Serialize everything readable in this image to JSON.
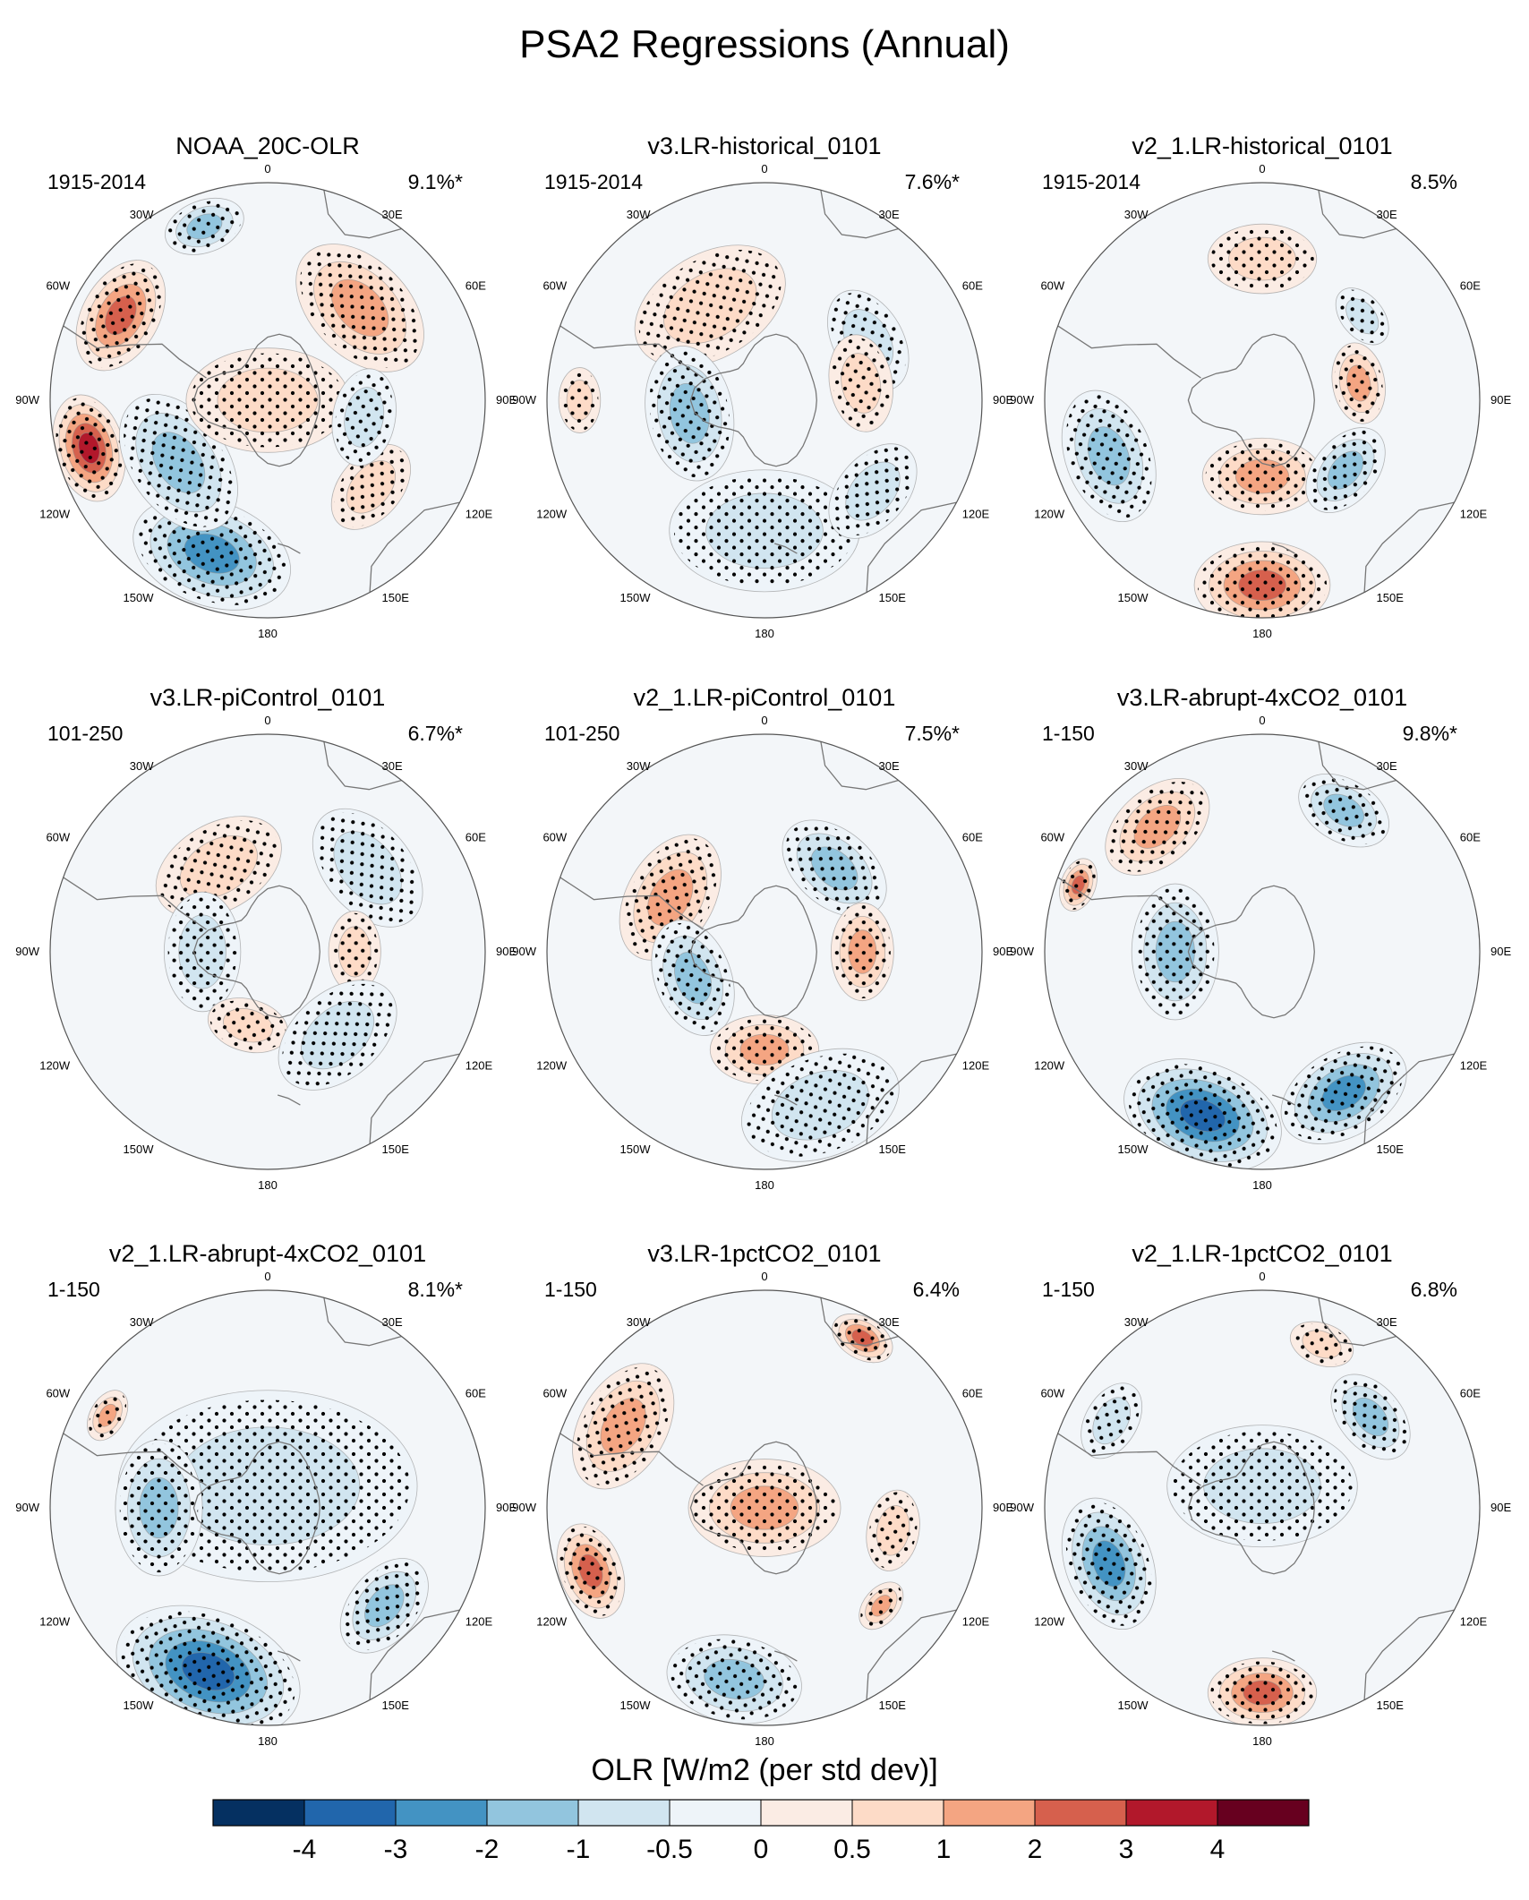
{
  "chart_data": {
    "type": "heatmap",
    "title": "PSA2 Regressions (Annual)",
    "projection": "south-polar-stereographic",
    "lon_labels": [
      "0",
      "30E",
      "60E",
      "90E",
      "120E",
      "150E",
      "180",
      "150W",
      "120W",
      "90W",
      "60W",
      "30W"
    ],
    "colorbar": {
      "label": "OLR [W/m2 (per std dev)]",
      "levels": [
        "-4",
        "-3",
        "-2",
        "-1",
        "-0.5",
        "0",
        "0.5",
        "1",
        "2",
        "3",
        "4"
      ],
      "colors": [
        "#053061",
        "#2166ac",
        "#4393c3",
        "#92c5de",
        "#d1e5f0",
        "#eef4f9",
        "#fbece4",
        "#fddbc7",
        "#f4a582",
        "#d6604d",
        "#b2182b",
        "#67001f"
      ]
    },
    "panels": [
      {
        "title": "NOAA_20C-OLR",
        "period": "1915-2014",
        "variance": "9.1%*",
        "anomalies": [
          {
            "lon": 45,
            "r": 0.6,
            "v": 1.8,
            "size": 0.28
          },
          {
            "lon": 300,
            "r": 0.78,
            "v": 3.0,
            "size": 0.22
          },
          {
            "lon": 255,
            "r": 0.85,
            "v": 3.5,
            "size": 0.2
          },
          {
            "lon": 200,
            "r": 0.75,
            "v": -3.2,
            "size": 0.3
          },
          {
            "lon": 235,
            "r": 0.5,
            "v": -1.8,
            "size": 0.28
          },
          {
            "lon": 0,
            "r": 0.0,
            "v": 1.0,
            "size": 0.3
          },
          {
            "lon": 130,
            "r": 0.62,
            "v": 1.2,
            "size": 0.18
          },
          {
            "lon": 340,
            "r": 0.85,
            "v": -2.0,
            "size": 0.15
          },
          {
            "lon": 100,
            "r": 0.45,
            "v": -0.8,
            "size": 0.18
          }
        ]
      },
      {
        "title": "v3.LR-historical_0101",
        "period": "1915-2014",
        "variance": "7.6%*",
        "anomalies": [
          {
            "lon": 330,
            "r": 0.5,
            "v": 1.2,
            "size": 0.3
          },
          {
            "lon": 60,
            "r": 0.55,
            "v": -1.2,
            "size": 0.2
          },
          {
            "lon": 260,
            "r": 0.35,
            "v": -1.5,
            "size": 0.25
          },
          {
            "lon": 80,
            "r": 0.45,
            "v": 1.0,
            "size": 0.18
          },
          {
            "lon": 180,
            "r": 0.6,
            "v": -0.8,
            "size": 0.35
          },
          {
            "lon": 130,
            "r": 0.65,
            "v": -1.2,
            "size": 0.2
          },
          {
            "lon": 270,
            "r": 0.85,
            "v": 0.8,
            "size": 0.12
          }
        ]
      },
      {
        "title": "v2_1.LR-historical_0101",
        "period": "1915-2014",
        "variance": "8.5%",
        "anomalies": [
          {
            "lon": 0,
            "r": 0.65,
            "v": 1.0,
            "size": 0.2
          },
          {
            "lon": 180,
            "r": 0.85,
            "v": 3.0,
            "size": 0.25
          },
          {
            "lon": 180,
            "r": 0.35,
            "v": 2.0,
            "size": 0.22
          },
          {
            "lon": 250,
            "r": 0.75,
            "v": -1.8,
            "size": 0.25
          },
          {
            "lon": 130,
            "r": 0.5,
            "v": -1.5,
            "size": 0.18
          },
          {
            "lon": 80,
            "r": 0.45,
            "v": 1.5,
            "size": 0.15
          },
          {
            "lon": 50,
            "r": 0.6,
            "v": -1.0,
            "size": 0.12
          }
        ]
      },
      {
        "title": "v3.LR-piControl_0101",
        "period": "101-250",
        "variance": "6.7%*",
        "anomalies": [
          {
            "lon": 330,
            "r": 0.45,
            "v": 1.0,
            "size": 0.25
          },
          {
            "lon": 50,
            "r": 0.6,
            "v": -1.2,
            "size": 0.25
          },
          {
            "lon": 270,
            "r": 0.3,
            "v": -1.0,
            "size": 0.22
          },
          {
            "lon": 90,
            "r": 0.4,
            "v": 0.8,
            "size": 0.15
          },
          {
            "lon": 195,
            "r": 0.35,
            "v": 1.0,
            "size": 0.15
          },
          {
            "lon": 140,
            "r": 0.5,
            "v": -0.8,
            "size": 0.25
          }
        ]
      },
      {
        "title": "v2_1.LR-piControl_0101",
        "period": "101-250",
        "variance": "7.5%*",
        "anomalies": [
          {
            "lon": 40,
            "r": 0.5,
            "v": -1.5,
            "size": 0.22
          },
          {
            "lon": 300,
            "r": 0.5,
            "v": 1.5,
            "size": 0.25
          },
          {
            "lon": 250,
            "r": 0.35,
            "v": -1.5,
            "size": 0.22
          },
          {
            "lon": 90,
            "r": 0.45,
            "v": 1.5,
            "size": 0.18
          },
          {
            "lon": 180,
            "r": 0.45,
            "v": 1.5,
            "size": 0.2
          },
          {
            "lon": 160,
            "r": 0.75,
            "v": -1.2,
            "size": 0.3
          }
        ]
      },
      {
        "title": "v3.LR-abrupt-4xCO2_0101",
        "period": "1-150",
        "variance": "9.8%*",
        "anomalies": [
          {
            "lon": 320,
            "r": 0.75,
            "v": 2.0,
            "size": 0.22
          },
          {
            "lon": 290,
            "r": 0.9,
            "v": 2.5,
            "size": 0.1
          },
          {
            "lon": 200,
            "r": 0.8,
            "v": -3.5,
            "size": 0.3
          },
          {
            "lon": 150,
            "r": 0.75,
            "v": -2.5,
            "size": 0.25
          },
          {
            "lon": 270,
            "r": 0.4,
            "v": -2.0,
            "size": 0.25
          },
          {
            "lon": 30,
            "r": 0.75,
            "v": -1.5,
            "size": 0.18
          }
        ]
      },
      {
        "title": "v2_1.LR-abrupt-4xCO2_0101",
        "period": "1-150",
        "variance": "8.1%*",
        "anomalies": [
          {
            "lon": 0,
            "r": 0.1,
            "v": -1.2,
            "size": 0.55
          },
          {
            "lon": 200,
            "r": 0.8,
            "v": -3.5,
            "size": 0.35
          },
          {
            "lon": 270,
            "r": 0.5,
            "v": -2.0,
            "size": 0.25
          },
          {
            "lon": 300,
            "r": 0.85,
            "v": 1.5,
            "size": 0.1
          },
          {
            "lon": 130,
            "r": 0.7,
            "v": -2.0,
            "size": 0.2
          }
        ]
      },
      {
        "title": "v3.LR-1pctCO2_0101",
        "period": "1-150",
        "variance": "6.4%",
        "anomalies": [
          {
            "lon": 0,
            "r": 0.0,
            "v": 1.5,
            "size": 0.28
          },
          {
            "lon": 300,
            "r": 0.75,
            "v": 1.5,
            "size": 0.25
          },
          {
            "lon": 250,
            "r": 0.85,
            "v": 3.0,
            "size": 0.18
          },
          {
            "lon": 30,
            "r": 0.9,
            "v": 2.5,
            "size": 0.12
          },
          {
            "lon": 190,
            "r": 0.8,
            "v": -2.0,
            "size": 0.25
          },
          {
            "lon": 100,
            "r": 0.6,
            "v": 1.0,
            "size": 0.15
          },
          {
            "lon": 130,
            "r": 0.7,
            "v": 1.5,
            "size": 0.1
          }
        ]
      },
      {
        "title": "v2_1.LR-1pctCO2_0101",
        "period": "1-150",
        "variance": "6.8%",
        "anomalies": [
          {
            "lon": 0,
            "r": 0.1,
            "v": -1.0,
            "size": 0.35
          },
          {
            "lon": 250,
            "r": 0.75,
            "v": -2.5,
            "size": 0.25
          },
          {
            "lon": 180,
            "r": 0.85,
            "v": 3.0,
            "size": 0.2
          },
          {
            "lon": 50,
            "r": 0.65,
            "v": -1.5,
            "size": 0.18
          },
          {
            "lon": 20,
            "r": 0.8,
            "v": 1.0,
            "size": 0.12
          },
          {
            "lon": 300,
            "r": 0.8,
            "v": -1.2,
            "size": 0.15
          }
        ]
      }
    ]
  }
}
